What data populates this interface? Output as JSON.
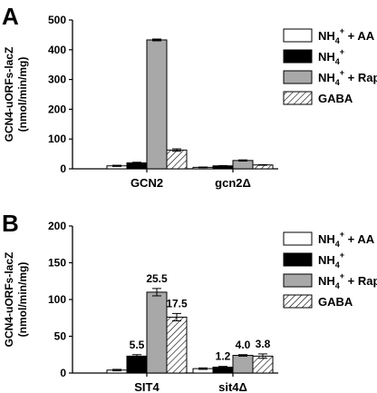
{
  "chart_data": [
    {
      "type": "bar",
      "panel": "A",
      "ylabel": "GCN4-uORFs-lacZ (nmol/min/mg)",
      "ylim": [
        0,
        500
      ],
      "yticks": [
        0,
        100,
        200,
        300,
        400,
        500
      ],
      "categories": [
        "GCN2",
        "gcn2Δ"
      ],
      "series": [
        {
          "name": "NH4+ + AA",
          "values": [
            10,
            5
          ],
          "errors": [
            2,
            1
          ],
          "color": "#ffffff",
          "pattern": "none"
        },
        {
          "name": "NH4+",
          "values": [
            20,
            10
          ],
          "errors": [
            2,
            1
          ],
          "color": "#000000",
          "pattern": "none"
        },
        {
          "name": "NH4+ + Rap",
          "values": [
            433,
            28
          ],
          "errors": [
            3,
            2
          ],
          "color": "#a8a8a8",
          "pattern": "none"
        },
        {
          "name": "GABA",
          "values": [
            63,
            13
          ],
          "errors": [
            4,
            1
          ],
          "color": "#ffffff",
          "pattern": "hatch"
        }
      ],
      "data_labels": []
    },
    {
      "type": "bar",
      "panel": "B",
      "ylabel": "GCN4-uORFs-lacZ (nmol/min/mg)",
      "ylim": [
        0,
        200
      ],
      "yticks": [
        0,
        50,
        100,
        150,
        200
      ],
      "categories": [
        "SIT4",
        "sit4Δ"
      ],
      "series": [
        {
          "name": "NH4+ + AA",
          "values": [
            4,
            6
          ],
          "errors": [
            1,
            1
          ],
          "color": "#ffffff",
          "pattern": "none"
        },
        {
          "name": "NH4+",
          "values": [
            23,
            8
          ],
          "errors": [
            2,
            1
          ],
          "color": "#000000",
          "pattern": "none"
        },
        {
          "name": "NH4+ + Rap",
          "values": [
            110,
            24
          ],
          "errors": [
            5,
            1
          ],
          "color": "#a8a8a8",
          "pattern": "none"
        },
        {
          "name": "GABA",
          "values": [
            76,
            23
          ],
          "errors": [
            5,
            3
          ],
          "color": "#ffffff",
          "pattern": "hatch"
        }
      ],
      "data_labels": [
        {
          "category": 0,
          "series": 1,
          "text": "5.5"
        },
        {
          "category": 0,
          "series": 2,
          "text": "25.5"
        },
        {
          "category": 0,
          "series": 3,
          "text": "17.5"
        },
        {
          "category": 1,
          "series": 1,
          "text": "1.2"
        },
        {
          "category": 1,
          "series": 2,
          "text": "4.0"
        },
        {
          "category": 1,
          "series": 3,
          "text": "3.8"
        }
      ]
    }
  ],
  "legend": {
    "items": [
      {
        "base": "NH",
        "sub": "4",
        "sup": "+",
        "suffix": " + AA"
      },
      {
        "base": "NH",
        "sub": "4",
        "sup": "+",
        "suffix": ""
      },
      {
        "base": "NH",
        "sub": "4",
        "sup": "+",
        "suffix": " + Rap"
      },
      {
        "base": "GABA",
        "sub": "",
        "sup": "",
        "suffix": ""
      }
    ]
  }
}
